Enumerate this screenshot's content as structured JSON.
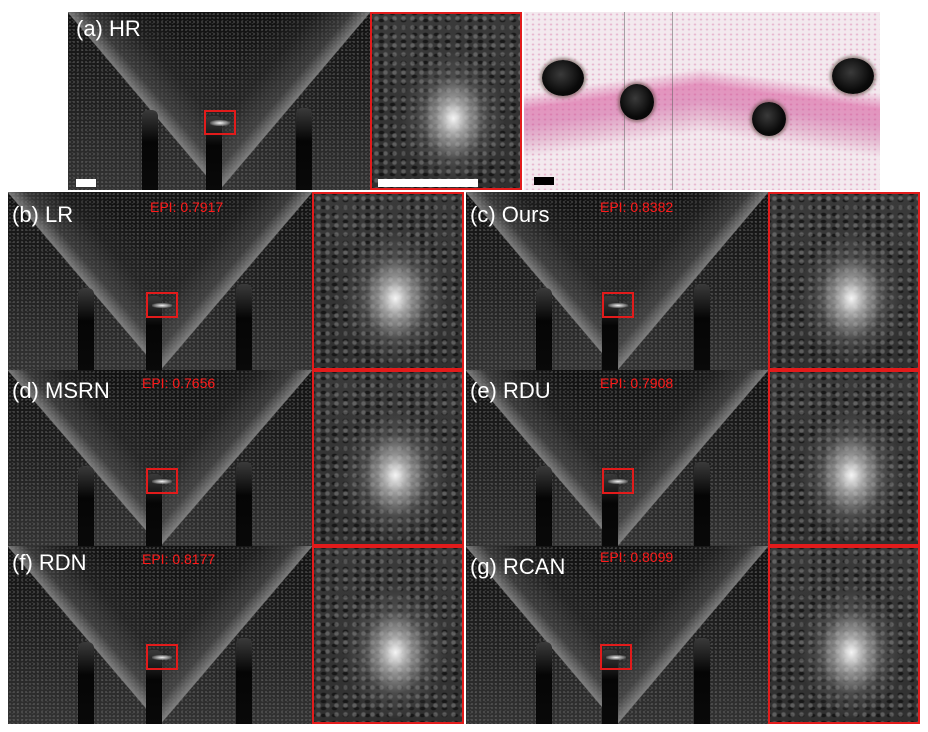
{
  "panels": {
    "a": {
      "label": "(a) HR"
    },
    "b": {
      "label": "(b) LR",
      "epi": "EPI: 0.7917"
    },
    "c": {
      "label": "(c) Ours",
      "epi": "EPI: 0.8382"
    },
    "d": {
      "label": "(d) MSRN",
      "epi": "EPI: 0.7656"
    },
    "e": {
      "label": "(e) RDU",
      "epi": "EPI: 0.7908"
    },
    "f": {
      "label": "(f) RDN",
      "epi": "EPI: 0.8177"
    },
    "g": {
      "label": "(g) RCAN",
      "epi": "EPI: 0.8099"
    }
  },
  "colors": {
    "roi_box": "#e21b1b",
    "epi_text": "#ff1a1a",
    "label_text": "#ffffff"
  }
}
